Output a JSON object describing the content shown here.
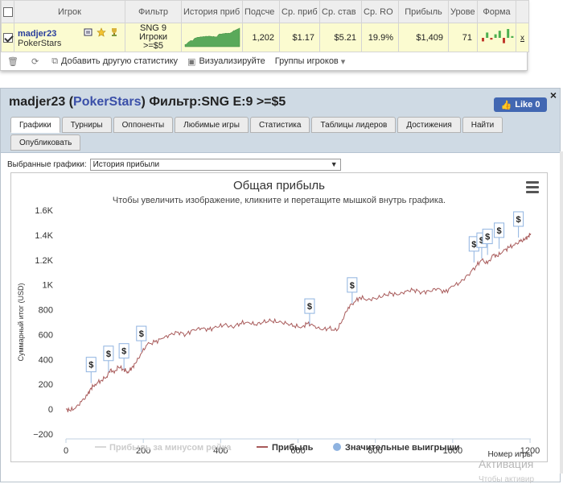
{
  "stats_table": {
    "columns": [
      "",
      "Игрок",
      "Фильтр",
      "История приб",
      "Подсче",
      "Ср. приб",
      "Ср. став",
      "Ср. RO",
      "Прибыль",
      "Урове",
      "Форма",
      ""
    ],
    "row": {
      "player_name": "madjer23",
      "room": "PokerStars",
      "filter_line1": "SNG 9",
      "filter_line2": "Игроки",
      "filter_line3": ">=$5",
      "count": "1,202",
      "avg_profit": "$1.17",
      "avg_stake": "$5.21",
      "avg_roi": "19.9%",
      "profit": "$1,409",
      "level": "71",
      "remove": "x"
    },
    "form_bars": [
      -2,
      3,
      -1,
      2,
      4,
      -3,
      5,
      1
    ],
    "form_colors": {
      "positive": "#4caf50",
      "negative": "#c0392b"
    }
  },
  "toolbar": {
    "add_stats": "Добавить другую статистику",
    "visualize": "Визуализируйте",
    "groups": "Группы игроков"
  },
  "profile": {
    "name": "madjer23",
    "room": "PokerStars",
    "filter": "Фильтр:SNG E:9 >=$5",
    "like": "Like 0",
    "close": "×",
    "tabs": [
      "Графики",
      "Турниры",
      "Оппоненты",
      "Любимые игры",
      "Статистика",
      "Таблицы лидеров",
      "Достижения",
      "Найти",
      "Опубликовать"
    ],
    "active_tab": "Графики",
    "chart_select_label": "Выбранные графики:",
    "chart_select_value": "История прибыли"
  },
  "chart_data": {
    "type": "line",
    "title": "Общая прибыль",
    "subtitle": "Чтобы увеличить изображение, кликните и перетащите мышкой внутрь графика.",
    "ylabel": "Суммарный итог (USD)",
    "xlabel": "Номер игры",
    "xlim": [
      0,
      1202
    ],
    "ylim": [
      -200,
      1600
    ],
    "x_ticks": [
      "0",
      "200",
      "400",
      "600",
      "800",
      "1000",
      "1200"
    ],
    "x_tick_values": [
      0,
      200,
      400,
      600,
      800,
      1000,
      1200
    ],
    "y_ticks": [
      "−200",
      "0",
      "200",
      "400",
      "600",
      "800",
      "1K",
      "1.2K",
      "1.4K",
      "1.6K"
    ],
    "y_tick_values": [
      -200,
      0,
      200,
      400,
      600,
      800,
      1000,
      1200,
      1400,
      1600
    ],
    "series": [
      {
        "name": "Прибыль",
        "color": "#a85a5a",
        "x": [
          0,
          10,
          25,
          40,
          55,
          65,
          75,
          90,
          105,
          115,
          125,
          135,
          150,
          160,
          170,
          180,
          195,
          210,
          230,
          250,
          270,
          290,
          310,
          330,
          350,
          370,
          390,
          410,
          430,
          450,
          470,
          490,
          510,
          530,
          550,
          570,
          590,
          610,
          625,
          640,
          660,
          680,
          700,
          715,
          730,
          745,
          760,
          780,
          800,
          820,
          840,
          860,
          880,
          900,
          920,
          940,
          960,
          980,
          1000,
          1020,
          1040,
          1060,
          1075,
          1090,
          1105,
          1115,
          1130,
          1145,
          1160,
          1175,
          1185,
          1195,
          1202
        ],
        "y": [
          0,
          -10,
          10,
          60,
          110,
          170,
          200,
          230,
          260,
          320,
          290,
          340,
          320,
          300,
          330,
          370,
          450,
          520,
          540,
          570,
          600,
          620,
          600,
          640,
          650,
          640,
          660,
          680,
          660,
          690,
          700,
          680,
          700,
          710,
          700,
          690,
          670,
          660,
          690,
          670,
          640,
          650,
          630,
          720,
          820,
          860,
          900,
          880,
          890,
          910,
          930,
          920,
          950,
          960,
          940,
          950,
          970,
          940,
          990,
          1020,
          1080,
          1150,
          1200,
          1170,
          1240,
          1230,
          1270,
          1300,
          1320,
          1350,
          1360,
          1390,
          1410
        ]
      },
      {
        "name": "Прибыль за минусом рейка",
        "color": "#d8d8d8",
        "x": [],
        "y": []
      }
    ],
    "significant_wins": {
      "name": "Значительные выигрыши",
      "color": "#8fb3e0",
      "x": [
        65,
        110,
        150,
        195,
        630,
        740,
        1055,
        1075,
        1090,
        1120,
        1170
      ],
      "y": [
        210,
        300,
        320,
        460,
        680,
        850,
        1180,
        1210,
        1240,
        1290,
        1380
      ]
    },
    "legend": [
      "Прибыль за минусом рейка",
      "Прибыль",
      "Значительные выигрыши"
    ],
    "legend_placement": "bottom",
    "grid": false
  },
  "watermark": {
    "line1": "Активация",
    "line2": "Чтобы активир"
  }
}
